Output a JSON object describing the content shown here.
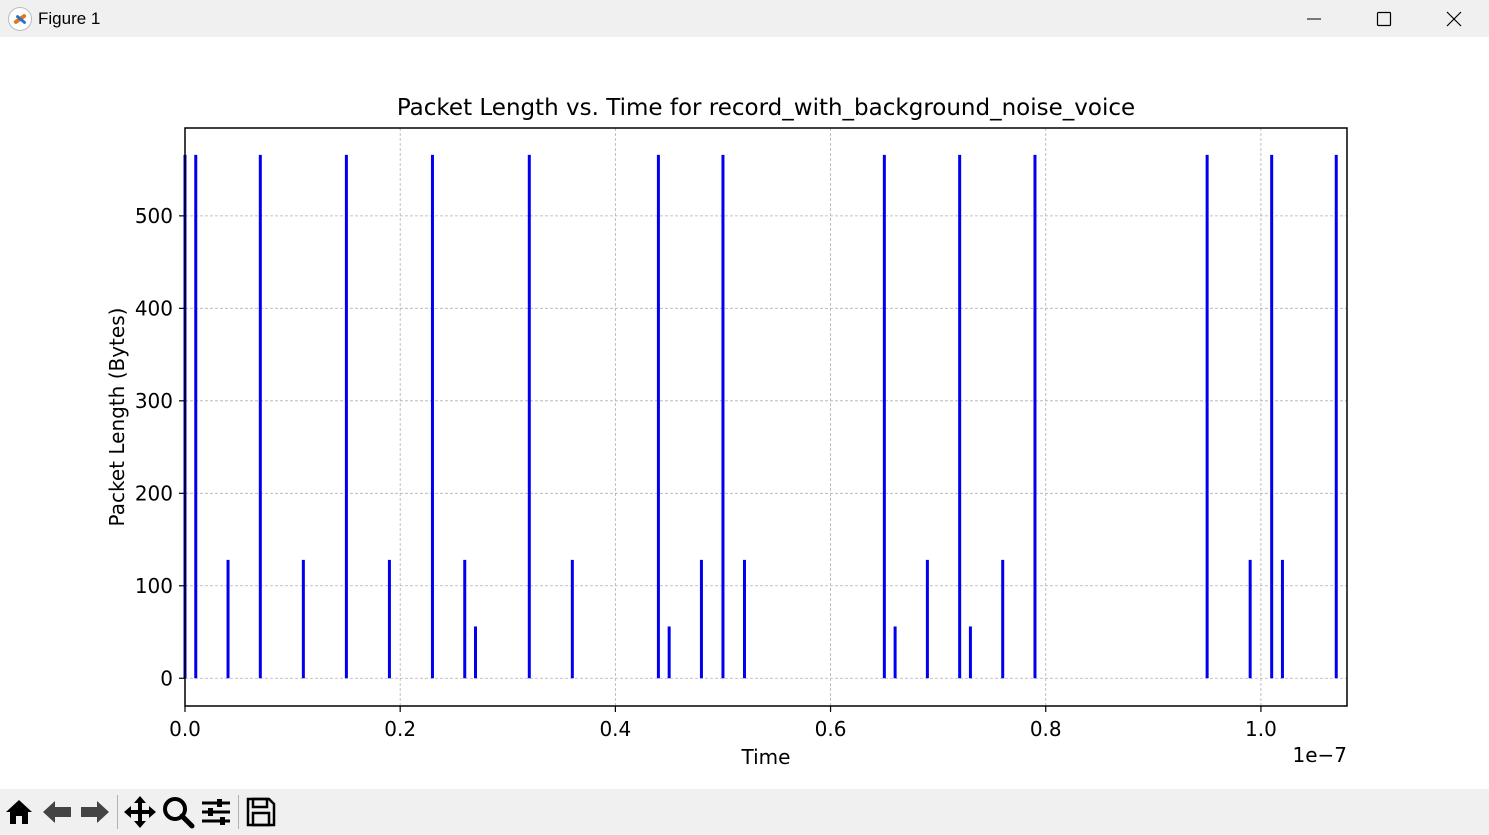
{
  "window": {
    "title": "Figure 1",
    "controls": [
      "minimize-icon",
      "maximize-icon",
      "close-icon"
    ]
  },
  "toolbar": {
    "buttons": [
      "home-icon",
      "back-arrow-icon",
      "forward-arrow-icon",
      "pan-move-icon",
      "zoom-magnifier-icon",
      "configure-subplots-icon",
      "save-disk-icon"
    ]
  },
  "colors": {
    "stem": "#0000ee",
    "grid": "#b0b0b0",
    "titlebar_bg": "#f0f0f0",
    "toolbar_bg": "#f0f0f0"
  },
  "chart_data": {
    "type": "stem",
    "title": "Packet Length vs. Time for record_with_background_noise_voice",
    "xlabel": "Time",
    "ylabel": "Packet Length (Bytes)",
    "x_offset_label": "1e−7",
    "xlim": [
      0.0,
      1.08
    ],
    "ylim": [
      -30,
      595
    ],
    "xticks": [
      0.0,
      0.2,
      0.4,
      0.6,
      0.8,
      1.0
    ],
    "xtick_labels": [
      "0.0",
      "0.2",
      "0.4",
      "0.6",
      "0.8",
      "1.0"
    ],
    "yticks": [
      0,
      100,
      200,
      300,
      400,
      500
    ],
    "ytick_labels": [
      "0",
      "100",
      "200",
      "300",
      "400",
      "500"
    ],
    "grid": true,
    "series": [
      {
        "x": [
          0.0,
          0.01,
          0.04,
          0.07,
          0.11,
          0.15,
          0.19,
          0.23,
          0.26,
          0.27,
          0.32,
          0.36,
          0.44,
          0.45,
          0.48,
          0.5,
          0.52,
          0.65,
          0.66,
          0.69,
          0.72,
          0.73,
          0.76,
          0.79,
          0.95,
          0.99,
          1.01,
          1.02,
          1.07
        ],
        "y": [
          566,
          566,
          128,
          566,
          128,
          566,
          128,
          566,
          128,
          56,
          566,
          128,
          566,
          56,
          128,
          566,
          128,
          566,
          56,
          128,
          566,
          56,
          128,
          566,
          566,
          128,
          566,
          128,
          566
        ]
      }
    ]
  }
}
